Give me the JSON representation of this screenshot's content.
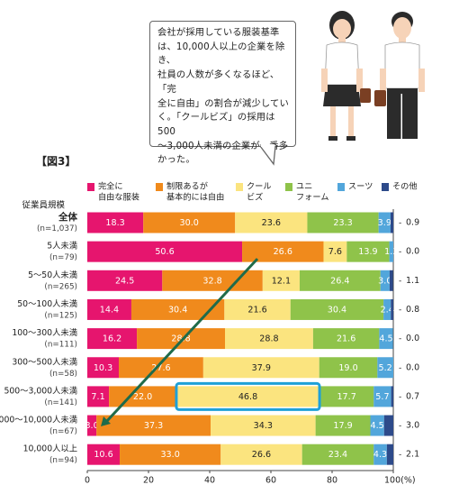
{
  "callout": {
    "lines": [
      "会社が採用している服装基準",
      "は、10,000人以上の企業を除き、",
      "社員の人数が多くなるほど、「完",
      "全に自由」の割合が減少してい",
      "く。「クールビズ」の採用は500",
      "～3,000人未満の企業が一番多",
      "かった。"
    ]
  },
  "figure_label": "【図3】",
  "chart_data": {
    "type": "bar",
    "orientation": "horizontal",
    "stacked": true,
    "row_header": "従業員規模",
    "categories": [
      {
        "name": "全体",
        "n": "(n=1,037)"
      },
      {
        "name": "5人未満",
        "n": "(n=79)"
      },
      {
        "name": "5～50人未満",
        "n": "(n=265)"
      },
      {
        "name": "50～100人未満",
        "n": "(n=125)"
      },
      {
        "name": "100～300人未満",
        "n": "(n=111)"
      },
      {
        "name": "300～500人未満",
        "n": "(n=58)"
      },
      {
        "name": "500～3,000人未満",
        "n": "(n=141)"
      },
      {
        "name": "3,000～10,000人未満",
        "n": "(n=67)"
      },
      {
        "name": "10,000人以上",
        "n": "(n=94)"
      }
    ],
    "series": [
      {
        "name": "完全に\n自由な服装",
        "color": "#e6156e",
        "values": [
          18.3,
          50.6,
          24.5,
          14.4,
          16.2,
          10.3,
          7.1,
          3.0,
          10.6
        ],
        "labels": [
          "18.3",
          "50.6",
          "24.5",
          "14.4",
          "16.2",
          "10.3",
          "7.1",
          "3.0",
          "10.6"
        ]
      },
      {
        "name": "制限あるが\n基本的には自由",
        "color": "#f08a1c",
        "values": [
          30.0,
          26.6,
          32.8,
          30.4,
          28.8,
          27.6,
          22.0,
          37.3,
          33.0
        ],
        "labels": [
          "30.0",
          "26.6",
          "32.8",
          "30.4",
          "28.8",
          "27.6",
          "22.0",
          "37.3",
          "33.0"
        ]
      },
      {
        "name": "クール\nビズ",
        "color": "#fbe47f",
        "values": [
          23.6,
          7.6,
          12.1,
          21.6,
          28.8,
          37.9,
          46.8,
          34.3,
          26.6
        ],
        "labels": [
          "23.6",
          "7.6",
          "12.1",
          "21.6",
          "28.8",
          "37.9",
          "46.8",
          "34.3",
          "26.6"
        ]
      },
      {
        "name": "ユニ\nフォーム",
        "color": "#8fc34a",
        "values": [
          23.3,
          13.9,
          26.4,
          30.4,
          21.6,
          19.0,
          17.7,
          17.9,
          23.4
        ],
        "labels": [
          "23.3",
          "13.9",
          "26.4",
          "30.4",
          "21.6",
          "19.0",
          "17.7",
          "17.9",
          "23.4"
        ]
      },
      {
        "name": "スーツ",
        "color": "#52a6db",
        "values": [
          3.9,
          1.3,
          3.0,
          2.4,
          4.5,
          5.2,
          5.7,
          4.5,
          4.3
        ],
        "labels": [
          "3.9",
          "1.3",
          "3.0",
          "2.4",
          "4.5",
          "5.2",
          "5.7",
          "4.5",
          "4.3"
        ]
      },
      {
        "name": "その他",
        "color": "#2d4a8a",
        "values": [
          0.9,
          0.0,
          1.1,
          0.8,
          0.0,
          0.0,
          0.7,
          3.0,
          2.1
        ],
        "labels": [
          "0.9",
          "0.0",
          "1.1",
          "0.8",
          "0.0",
          "0.0",
          "0.7",
          "3.0",
          "2.1"
        ]
      }
    ],
    "x_ticks": [
      "0",
      "20",
      "40",
      "60",
      "80",
      "100(%)"
    ],
    "xlim": [
      0,
      100
    ],
    "legend_position": "top",
    "highlight_box": {
      "category_index": 6,
      "series_index": 2
    },
    "trend_arrow": {
      "from_category_index": 1,
      "to_category_index": 7
    }
  },
  "colors": {
    "highlight": "#1ea0d8",
    "arrow": "#1f6b4a",
    "person_shirt": "#ffffff",
    "person_skirt": "#2b2b2b",
    "person_bag": "#7a3f23"
  }
}
